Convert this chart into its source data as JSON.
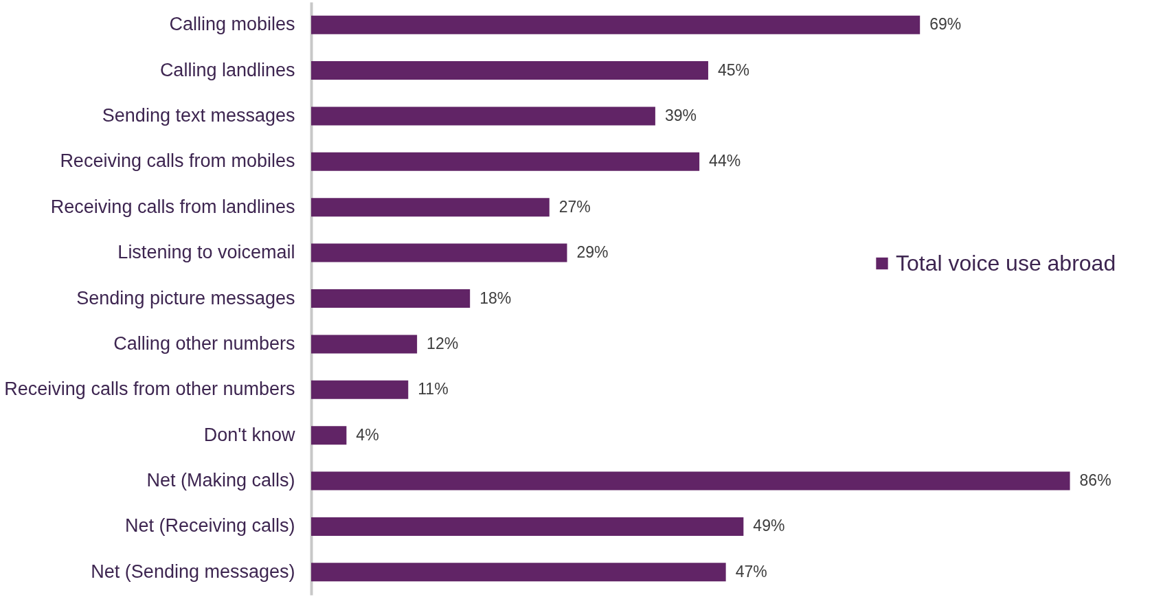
{
  "chart_data": {
    "type": "bar",
    "orientation": "horizontal",
    "categories": [
      "Calling mobiles",
      "Calling landlines",
      "Sending text messages",
      "Receiving calls from mobiles",
      "Receiving calls from landlines",
      "Listening to voicemail",
      "Sending picture messages",
      "Calling other numbers",
      "Receiving calls from other numbers",
      "Don't know",
      "Net (Making calls)",
      "Net (Receiving calls)",
      "Net (Sending messages)"
    ],
    "series": [
      {
        "name": "Total voice use abroad",
        "color": "#612466",
        "values": [
          69,
          45,
          39,
          44,
          27,
          29,
          18,
          12,
          11,
          4,
          86,
          49,
          47
        ],
        "value_labels": [
          "69%",
          "45%",
          "39%",
          "44%",
          "27%",
          "29%",
          "18%",
          "12%",
          "11%",
          "4%",
          "86%",
          "49%",
          "47%"
        ]
      }
    ],
    "legend": "right"
  }
}
